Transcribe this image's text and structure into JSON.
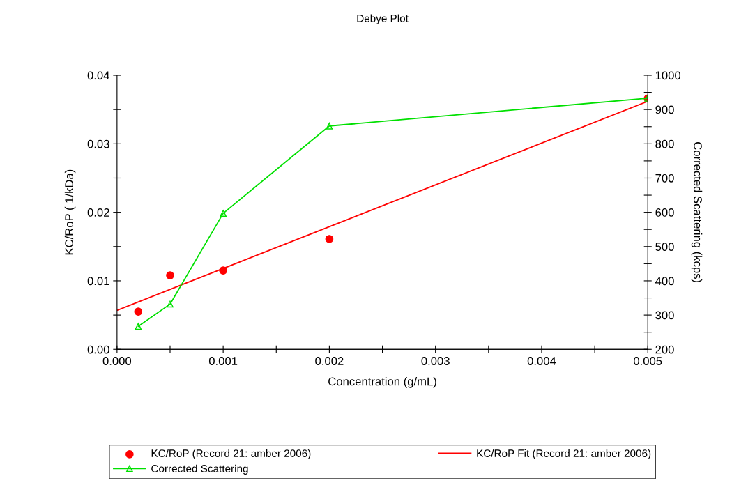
{
  "chart_data": {
    "type": "scatter",
    "title": "Debye Plot",
    "xlabel": "Concentration (g/mL)",
    "ylabel": "KC/RoP ( 1/kDa)",
    "y2label": "Corrected Scattering (kcps)",
    "xlim": [
      0,
      0.005
    ],
    "xticks": [
      {
        "value": 0,
        "label": "0.000"
      },
      {
        "value": 0.0005,
        "label": null
      },
      {
        "value": 0.001,
        "label": "0.001"
      },
      {
        "value": 0.0015,
        "label": null
      },
      {
        "value": 0.002,
        "label": "0.002"
      },
      {
        "value": 0.0025,
        "label": null
      },
      {
        "value": 0.003,
        "label": "0.003"
      },
      {
        "value": 0.0035,
        "label": null
      },
      {
        "value": 0.004,
        "label": "0.004"
      },
      {
        "value": 0.0045,
        "label": null
      },
      {
        "value": 0.005,
        "label": "0.005"
      }
    ],
    "ylim": [
      0,
      0.04
    ],
    "yticks": [
      {
        "value": 0,
        "label": "0.00"
      },
      {
        "value": 0.005,
        "label": null
      },
      {
        "value": 0.01,
        "label": "0.01"
      },
      {
        "value": 0.015,
        "label": null
      },
      {
        "value": 0.02,
        "label": "0.02"
      },
      {
        "value": 0.025,
        "label": null
      },
      {
        "value": 0.03,
        "label": "0.03"
      },
      {
        "value": 0.035,
        "label": null
      },
      {
        "value": 0.04,
        "label": "0.04"
      }
    ],
    "y2lim": [
      200,
      1000
    ],
    "y2ticks": [
      200,
      {
        "value": 250,
        "label": null
      },
      300,
      {
        "value": 350,
        "label": null
      },
      400,
      {
        "value": 450,
        "label": null
      },
      500,
      {
        "value": 550,
        "label": null
      },
      600,
      {
        "value": 650,
        "label": null
      },
      700,
      {
        "value": 750,
        "label": null
      },
      800,
      {
        "value": 850,
        "label": null
      },
      900,
      {
        "value": 950,
        "label": null
      },
      1000
    ],
    "grid": false,
    "legend": "bottom",
    "series": [
      {
        "name": "KC/RoP (Record 21: amber 2006)",
        "color": "#ff0000",
        "marker": "circle",
        "x": [
          0.0002,
          0.0005,
          0.001,
          0.002,
          0.005
        ],
        "values": [
          0.0055,
          0.0108,
          0.0115,
          0.0161,
          0.0366
        ]
      },
      {
        "name": "KC/RoP Fit (Record 21: amber 2006)",
        "type": "line",
        "color": "#ff0000",
        "marker": "none",
        "x": [
          0,
          0.005
        ],
        "values": [
          0.0057,
          0.0362
        ]
      },
      {
        "name": "Corrected Scattering",
        "type": "line",
        "axis": "y2",
        "color": "#00e000",
        "marker": "triangle",
        "x": [
          0.0002,
          0.0005,
          0.001,
          0.002,
          0.005
        ],
        "values": [
          267,
          332,
          597,
          852,
          933
        ]
      }
    ]
  }
}
